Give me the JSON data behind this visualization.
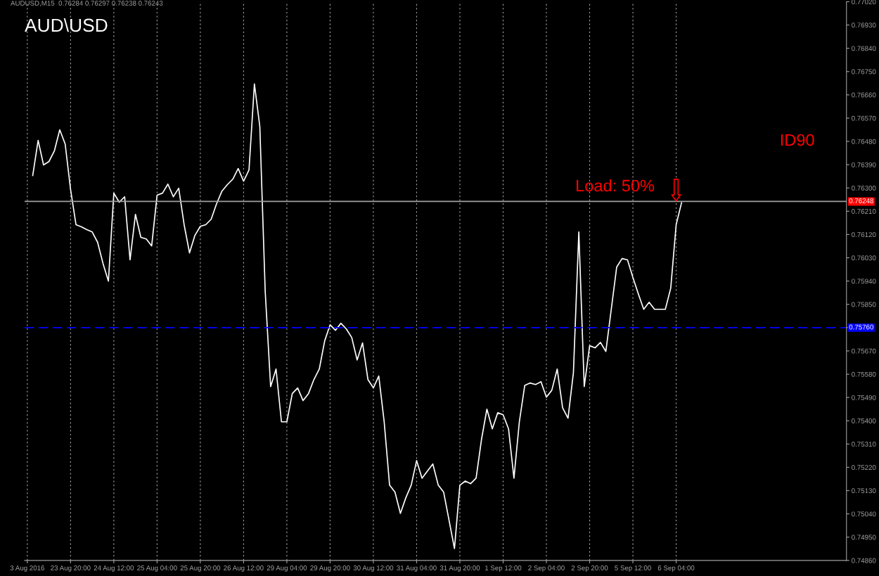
{
  "chart_data": {
    "type": "line",
    "title": "AUD\\USD",
    "subtitle": "AUDUSD,M15  0.76284 0.76297 0.76238 0.76243",
    "annotations": [
      "ID90",
      {
        "text": "Load: 50%",
        "x": "6 Sep 04:00",
        "y": 0.76243
      }
    ],
    "categories": [
      "3 Aug 2016",
      null,
      null,
      null,
      null,
      null,
      null,
      null,
      "23 Aug 20:00",
      null,
      null,
      null,
      null,
      null,
      null,
      null,
      "24 Aug 12:00",
      null,
      null,
      null,
      null,
      null,
      null,
      null,
      "25 Aug 04:00",
      null,
      null,
      null,
      null,
      null,
      null,
      null,
      "25 Aug 20:00",
      null,
      null,
      null,
      null,
      null,
      null,
      null,
      "26 Aug 12:00",
      null,
      null,
      null,
      null,
      null,
      null,
      null,
      "29 Aug 04:00",
      null,
      null,
      null,
      null,
      null,
      null,
      null,
      "29 Aug 20:00",
      null,
      null,
      null,
      null,
      null,
      null,
      null,
      "30 Aug 12:00",
      null,
      null,
      null,
      null,
      null,
      null,
      null,
      "31 Aug 04:00",
      null,
      null,
      null,
      null,
      null,
      null,
      null,
      "31 Aug 20:00",
      null,
      null,
      null,
      null,
      null,
      null,
      null,
      "1 Sep 12:00",
      null,
      null,
      null,
      null,
      null,
      null,
      null,
      "2 Sep 04:00",
      null,
      null,
      null,
      null,
      null,
      null,
      null,
      "2 Sep 20:00",
      null,
      null,
      null,
      null,
      null,
      null,
      null,
      "5 Sep 12:00",
      null,
      null,
      null,
      null,
      null,
      null,
      null,
      "6 Sep 04:00",
      null,
      null,
      null,
      null,
      null,
      null,
      null,
      null,
      null,
      null,
      null,
      null,
      null,
      null,
      null,
      null,
      null,
      null,
      null,
      null,
      null,
      null,
      null,
      null,
      null,
      null,
      null,
      null,
      null,
      null,
      null
    ],
    "series": [
      {
        "color": "#ffffff",
        "values": [
          null,
          0.76348,
          0.76484,
          0.76389,
          0.76402,
          0.76443,
          0.76525,
          0.7647,
          0.76294,
          0.76158,
          0.7615,
          0.76139,
          0.7613,
          0.7609,
          0.76008,
          0.7594,
          0.7628,
          0.76245,
          0.76266,
          0.76022,
          0.76198,
          0.76109,
          0.76103,
          0.76076,
          0.76272,
          0.7628,
          0.76315,
          0.76266,
          0.76299,
          0.76158,
          0.76049,
          0.76117,
          0.76152,
          0.76158,
          0.76179,
          0.76239,
          0.76288,
          0.76313,
          0.76334,
          0.76375,
          0.76326,
          0.7637,
          0.76702,
          0.76538,
          0.75899,
          0.75532,
          0.756,
          0.75396,
          0.75396,
          0.75505,
          0.75527,
          0.75478,
          0.75505,
          0.75559,
          0.756,
          0.75709,
          0.75771,
          0.7575,
          0.75777,
          0.75755,
          0.75722,
          0.75635,
          0.75701,
          0.75559,
          0.75527,
          0.75573,
          0.75396,
          0.75151,
          0.75124,
          0.75042,
          0.75102,
          0.75151,
          0.75246,
          0.75178,
          0.75206,
          0.75233,
          0.75151,
          0.75124,
          0.75015,
          0.74906,
          0.75151,
          0.75167,
          0.75157,
          0.75178,
          0.75328,
          0.75445,
          0.75369,
          0.75431,
          0.75423,
          0.75369,
          0.75178,
          0.75396,
          0.75537,
          0.75546,
          0.7554,
          0.75551,
          0.75491,
          0.75518,
          0.756,
          0.7545,
          0.7541,
          0.75586,
          0.7613,
          0.75532,
          0.7569,
          0.75682,
          0.75703,
          0.75668,
          0.75831,
          0.75994,
          0.76027,
          0.76022,
          0.75954,
          0.75891,
          0.75831,
          0.75858,
          0.75831,
          0.75831,
          0.75831,
          0.75913,
          0.76158,
          0.76243,
          null,
          null,
          null,
          null,
          null,
          null,
          null,
          null,
          null,
          null,
          null,
          null,
          null,
          null,
          null,
          null,
          null,
          null,
          null,
          null,
          null,
          null,
          null,
          null,
          null,
          null,
          null,
          null,
          null,
          null
        ]
      }
    ],
    "ylim": [
      0.7486,
      0.7702
    ],
    "yticks": [
      {
        "value": 0.7486,
        "label": "0.74860"
      },
      {
        "value": 0.7495,
        "label": "0.74950"
      },
      {
        "value": 0.7504,
        "label": "0.75040"
      },
      {
        "value": 0.7513,
        "label": "0.75130"
      },
      {
        "value": 0.7522,
        "label": "0.75220"
      },
      {
        "value": 0.7531,
        "label": "0.75310"
      },
      {
        "value": 0.754,
        "label": "0.75400"
      },
      {
        "value": 0.7549,
        "label": "0.75490"
      },
      {
        "value": 0.7558,
        "label": "0.75580"
      },
      {
        "value": 0.7567,
        "label": "0.75670"
      },
      {
        "value": 0.7576,
        "label": null
      },
      {
        "value": 0.7585,
        "label": "0.75850"
      },
      {
        "value": 0.7594,
        "label": "0.75940"
      },
      {
        "value": 0.7603,
        "label": "0.76030"
      },
      {
        "value": 0.7612,
        "label": "0.76120"
      },
      {
        "value": 0.7621,
        "label": "0.76210"
      },
      {
        "value": 0.763,
        "label": "0.76300"
      },
      {
        "value": 0.7639,
        "label": "0.76390"
      },
      {
        "value": 0.7648,
        "label": "0.76480"
      },
      {
        "value": 0.7657,
        "label": "0.76570"
      },
      {
        "value": 0.7666,
        "label": "0.76660"
      },
      {
        "value": 0.7675,
        "label": "0.76750"
      },
      {
        "value": 0.7684,
        "label": "0.76840"
      },
      {
        "value": 0.7693,
        "label": "0.76930"
      },
      {
        "value": 0.7702,
        "label": "0.77020"
      }
    ],
    "ref_lines": [
      {
        "axis": "y",
        "value": 0.76248,
        "label": "0.76248",
        "color": "#a0a0a0",
        "line_style": "solid"
      },
      {
        "axis": "y",
        "value": 0.7576,
        "label": "0.75760",
        "color": "#0000ff",
        "line_style": "dashed"
      }
    ],
    "grid": "x",
    "marker": "none",
    "line_style": "solid"
  }
}
